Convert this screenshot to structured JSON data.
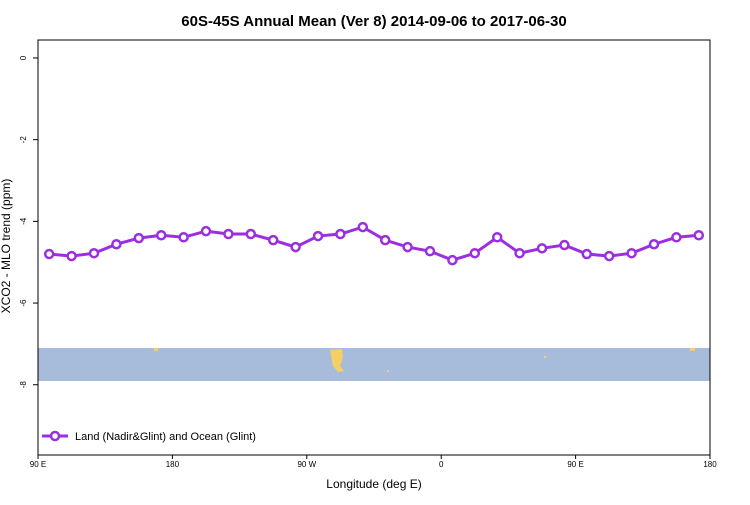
{
  "chart_data": {
    "type": "line",
    "title": "60S-45S Annual Mean (Ver 8)   2014-09-06 to 2017-06-30",
    "x_label": "Longitude (deg E)",
    "y_label": "XCO2 - MLO trend (ppm)",
    "x": [
      97.5,
      112.5,
      127.5,
      142.5,
      157.5,
      172.5,
      187.5,
      202.5,
      217.5,
      232.5,
      247.5,
      262.5,
      277.5,
      292.5,
      307.5,
      322.5,
      337.5,
      352.5,
      367.5,
      382.5,
      397.5,
      412.5,
      427.5,
      442.5,
      457.5,
      472.5,
      487.5,
      502.5,
      517.5,
      532.5
    ],
    "series": [
      {
        "name": "Land (Nadir&Glint) and Ocean (Glint)",
        "color": "#9b2fe0",
        "values": [
          -4.8,
          -4.85,
          -4.78,
          -4.56,
          -4.41,
          -4.34,
          -4.39,
          -4.24,
          -4.31,
          -4.31,
          -4.46,
          -4.63,
          -4.36,
          -4.31,
          -4.14,
          -4.46,
          -4.63,
          -4.73,
          -4.95,
          -4.78,
          -4.39,
          -4.78,
          -4.66,
          -4.58,
          -4.8,
          -4.85,
          -4.78,
          -4.56,
          -4.39,
          -4.34
        ]
      }
    ],
    "xlim": [
      90,
      540
    ],
    "xticks": [
      {
        "value": 90,
        "label": "90 E"
      },
      180,
      {
        "value": 270,
        "label": "90 W"
      },
      {
        "value": 360,
        "label": "0"
      },
      {
        "value": 450,
        "label": "90 E"
      },
      {
        "value": 540,
        "label": "180"
      }
    ],
    "ylim": [
      -9.72,
      0.44
    ],
    "yticks": [
      0,
      -2,
      -4,
      -6,
      -8
    ],
    "legend": "bottom-left"
  }
}
